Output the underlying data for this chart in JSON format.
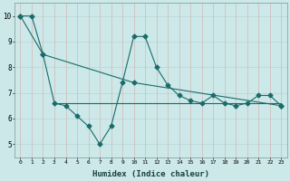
{
  "xlabel": "Humidex (Indice chaleur)",
  "xlim": [
    -0.5,
    23.5
  ],
  "ylim": [
    4.5,
    10.5
  ],
  "yticks": [
    5,
    6,
    7,
    8,
    9,
    10
  ],
  "xticks": [
    0,
    1,
    2,
    3,
    4,
    5,
    6,
    7,
    8,
    9,
    10,
    11,
    12,
    13,
    14,
    15,
    16,
    17,
    18,
    19,
    20,
    21,
    22,
    23
  ],
  "bg_color": "#cce8e8",
  "line_color": "#1a6b6b",
  "grid_color_h": "#b8d4d4",
  "grid_color_v": "#d4b8b8",
  "line1_x": [
    0,
    1,
    2,
    3,
    4,
    5,
    6,
    7,
    8,
    9,
    10,
    11,
    12,
    13,
    14,
    15,
    16,
    17,
    18,
    19,
    20,
    21,
    22,
    23
  ],
  "line1_y": [
    10.0,
    10.0,
    8.5,
    6.6,
    6.5,
    6.1,
    5.7,
    5.0,
    5.7,
    7.4,
    9.2,
    9.2,
    8.0,
    7.3,
    6.9,
    6.7,
    6.6,
    6.9,
    6.6,
    6.5,
    6.6,
    6.9,
    6.9,
    6.5
  ],
  "line2_x": [
    0,
    2,
    10,
    23
  ],
  "line2_y": [
    10.0,
    8.5,
    7.4,
    6.5
  ],
  "hline_y": 6.6,
  "hline_x_start": 3,
  "hline_x_end": 23,
  "marker_size": 2.5,
  "linewidth": 0.8
}
